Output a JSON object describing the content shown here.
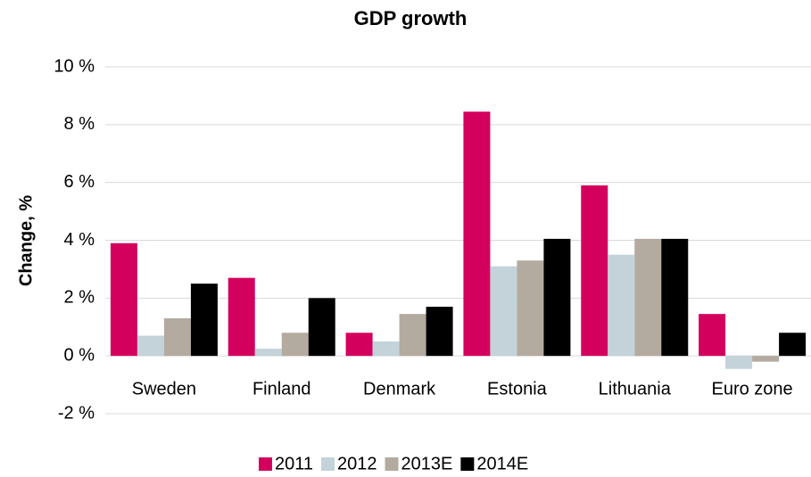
{
  "chart_data": {
    "type": "bar",
    "title": "GDP growth",
    "y_label": "Change, %",
    "categories": [
      "Sweden",
      "Finland",
      "Denmark",
      "Estonia",
      "Lithuania",
      "Euro zone"
    ],
    "series": [
      {
        "name": "2011",
        "color": "#d4005e",
        "values": [
          3.9,
          2.7,
          0.8,
          8.45,
          5.9,
          1.45
        ]
      },
      {
        "name": "2012",
        "color": "#c3d3d9",
        "values": [
          0.7,
          0.25,
          0.5,
          3.1,
          3.5,
          -0.45
        ]
      },
      {
        "name": "2013E",
        "color": "#b3aaa0",
        "values": [
          1.3,
          0.8,
          1.45,
          3.3,
          4.05,
          -0.2
        ]
      },
      {
        "name": "2014E",
        "color": "#000000",
        "values": [
          2.5,
          2.0,
          1.7,
          4.05,
          4.05,
          0.8
        ]
      }
    ],
    "ylim": [
      -2,
      10
    ],
    "yticks": [
      {
        "value": -2,
        "label": "-2 %"
      },
      {
        "value": 0,
        "label": "0 %"
      },
      {
        "value": 2,
        "label": "2 %"
      },
      {
        "value": 4,
        "label": "4 %"
      },
      {
        "value": 6,
        "label": "6 %"
      },
      {
        "value": 8,
        "label": "8 %"
      },
      {
        "value": 10,
        "label": "10 %"
      }
    ],
    "grid": true,
    "legend": "bottom"
  }
}
